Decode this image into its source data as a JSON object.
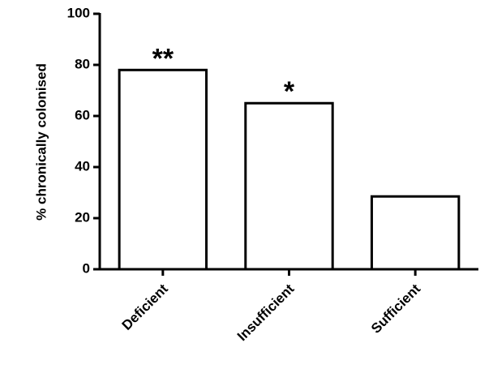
{
  "chart_data": {
    "type": "bar",
    "y_label": "% chronically colonised",
    "categories": [
      "Deficient",
      "Insufficient",
      "Sufficient"
    ],
    "values": [
      78,
      65,
      28.5
    ],
    "color": "#ffffff",
    "stroke": "#000000",
    "ylim": [
      0,
      100
    ],
    "yticks": [
      0,
      20,
      40,
      60,
      80,
      100
    ],
    "grid": false,
    "annotations": [
      {
        "text": "**",
        "category": "Deficient"
      },
      {
        "text": "*",
        "category": "Insufficient"
      }
    ]
  }
}
